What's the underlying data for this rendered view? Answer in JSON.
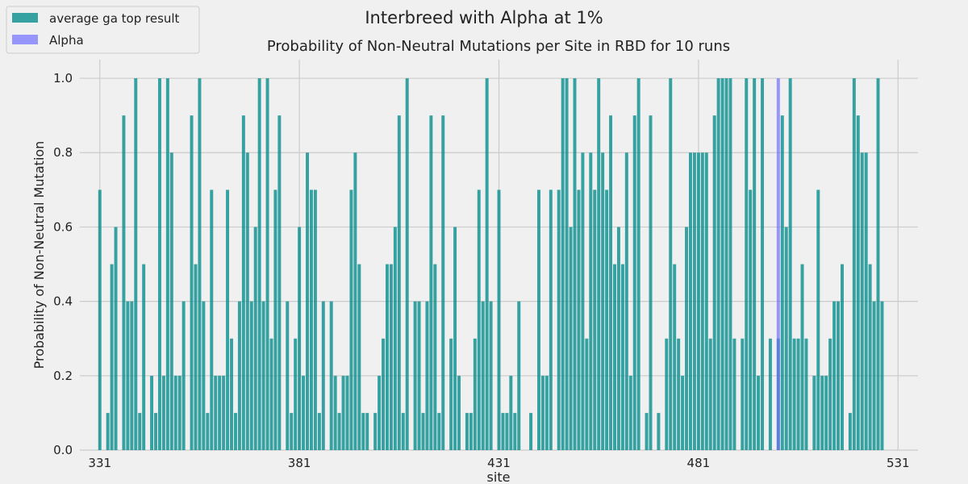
{
  "suptitle": "Interbreed with Alpha at 1%",
  "legend": {
    "location": "upper left",
    "entries": [
      {
        "label": "average ga top result",
        "color": "#008b8b"
      },
      {
        "label": "Alpha",
        "color": "#6d6dff"
      }
    ]
  },
  "chart_data": {
    "type": "bar",
    "title": "Probability of Non-Neutral Mutations per Site in RBD for 10 runs",
    "xlabel": "site",
    "ylabel": "Probability of Non-Neutral Mutation",
    "xlim": [
      326,
      536
    ],
    "ylim": [
      0,
      1.05
    ],
    "xticks": [
      331,
      381,
      431,
      481,
      531
    ],
    "yticks": [
      0.0,
      0.2,
      0.4,
      0.6,
      0.8,
      1.0
    ],
    "grid": true,
    "series": [
      {
        "name": "average ga top result",
        "color": "#008b8b",
        "x_start": 331,
        "values": [
          0.7,
          0,
          0.1,
          0.5,
          0.6,
          0,
          0.9,
          0.4,
          0.4,
          1.0,
          0.1,
          0.5,
          0,
          0.2,
          0.1,
          1.0,
          0.2,
          1.0,
          0.8,
          0.2,
          0.2,
          0.4,
          0,
          0.9,
          0.5,
          1.0,
          0.4,
          0.1,
          0.7,
          0.2,
          0.2,
          0.2,
          0.7,
          0.3,
          0.1,
          0.4,
          0.9,
          0.8,
          0.4,
          0.6,
          1.0,
          0.4,
          1.0,
          0.3,
          0.7,
          0.9,
          0,
          0.4,
          0.1,
          0.3,
          0.6,
          0.2,
          0.8,
          0.7,
          0.7,
          0.1,
          0.4,
          0,
          0.4,
          0.2,
          0.1,
          0.2,
          0.2,
          0.7,
          0.8,
          0.5,
          0.1,
          0.1,
          0,
          0.1,
          0.2,
          0.3,
          0.5,
          0.5,
          0.6,
          0.9,
          0.1,
          1.0,
          0,
          0.4,
          0.4,
          0.1,
          0.4,
          0.9,
          0.5,
          0.1,
          0.9,
          0,
          0.3,
          0.6,
          0.2,
          0,
          0.1,
          0.1,
          0.3,
          0.7,
          0.4,
          1.0,
          0.4,
          0,
          0.7,
          0.1,
          0.1,
          0.2,
          0.1,
          0.4,
          0,
          0,
          0.1,
          0,
          0.7,
          0.2,
          0.2,
          0.7,
          0,
          0.7,
          1.0,
          1.0,
          0.6,
          1.0,
          0.7,
          0.8,
          0.3,
          0.8,
          0.7,
          1.0,
          0.8,
          0.7,
          0.9,
          0.5,
          0.6,
          0.5,
          0.8,
          0.2,
          0.9,
          1.0,
          0,
          0.1,
          0.9,
          0,
          0.1,
          0,
          0.3,
          1.0,
          0.5,
          0.3,
          0.2,
          0.6,
          0.8,
          0.8,
          0.8,
          0.8,
          0.8,
          0.3,
          0.9,
          1.0,
          1.0,
          1.0,
          1.0,
          0.3,
          0,
          0.3,
          1.0,
          0.7,
          1.0,
          0.2,
          1.0,
          0,
          0.3,
          0,
          0.3,
          0.9,
          0.6,
          1.0,
          0.3,
          0.3,
          0.5,
          0.3,
          0,
          0.2,
          0.7,
          0.2,
          0.2,
          0.3,
          0.4,
          0.4,
          0.5,
          0,
          0.1,
          1.0,
          0.9,
          0.8,
          0.8,
          0.5,
          0.4,
          1.0,
          0.4
        ]
      },
      {
        "name": "Alpha",
        "color": "#6d6dff",
        "x": [
          501
        ],
        "values": [
          1.0
        ]
      }
    ]
  }
}
